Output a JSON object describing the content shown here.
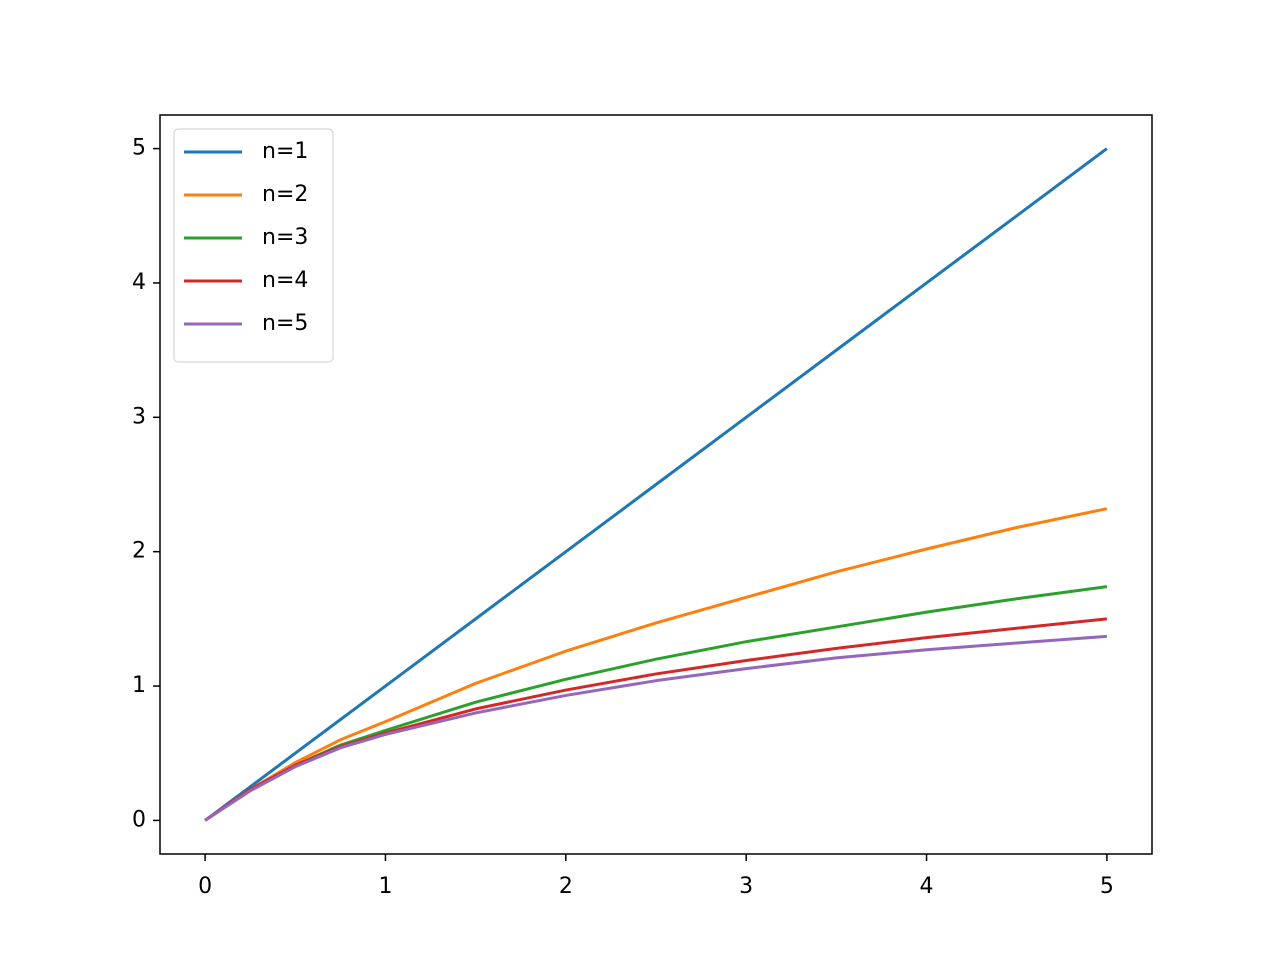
{
  "chart_data": {
    "type": "line",
    "x": [
      0,
      0.25,
      0.5,
      0.75,
      1,
      1.5,
      2,
      2.5,
      3,
      3.5,
      4,
      4.5,
      5
    ],
    "series": [
      {
        "name": "n=1",
        "color": "#1f77b4",
        "values": [
          0,
          0.25,
          0.5,
          0.75,
          1,
          1.5,
          2,
          2.5,
          3,
          3.5,
          4,
          4.5,
          5
        ]
      },
      {
        "name": "n=2",
        "color": "#ff7f0e",
        "values": [
          0,
          0.23,
          0.43,
          0.6,
          0.735,
          1.02,
          1.26,
          1.47,
          1.66,
          1.85,
          2.02,
          2.18,
          2.32
        ]
      },
      {
        "name": "n=3",
        "color": "#2ca02c",
        "values": [
          0,
          0.23,
          0.41,
          0.56,
          0.67,
          0.88,
          1.05,
          1.2,
          1.33,
          1.44,
          1.55,
          1.65,
          1.74
        ]
      },
      {
        "name": "n=4",
        "color": "#d62728",
        "values": [
          0,
          0.23,
          0.41,
          0.55,
          0.65,
          0.83,
          0.97,
          1.09,
          1.19,
          1.28,
          1.36,
          1.43,
          1.5
        ]
      },
      {
        "name": "n=5",
        "color": "#9467bd",
        "values": [
          0,
          0.22,
          0.4,
          0.54,
          0.64,
          0.8,
          0.93,
          1.04,
          1.13,
          1.21,
          1.27,
          1.32,
          1.37
        ]
      }
    ],
    "xlim": [
      -0.25,
      5.25
    ],
    "ylim": [
      -0.25,
      5.25
    ],
    "xticks": [
      0,
      1,
      2,
      3,
      4,
      5
    ],
    "yticks": [
      0,
      1,
      2,
      3,
      4,
      5
    ],
    "legend": "upper left"
  }
}
